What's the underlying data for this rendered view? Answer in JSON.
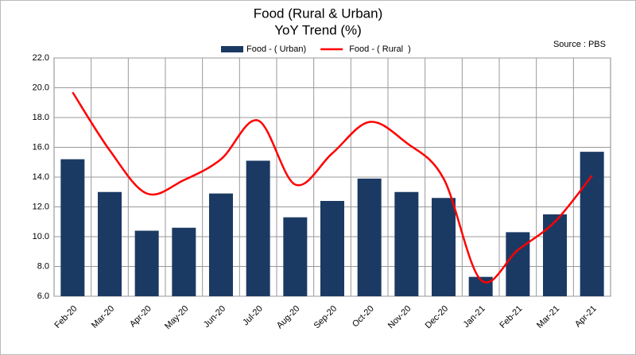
{
  "chart_data": {
    "type": "bar",
    "title": "Food  (Rural & Urban)",
    "subtitle": "YoY Trend (%)",
    "annotation": "Source : PBS",
    "categories": [
      "Feb-20",
      "Mar-20",
      "Apr-20",
      "May-20",
      "Jun-20",
      "Jul-20",
      "Aug-20",
      "Sep-20",
      "Oct-20",
      "Nov-20",
      "Dec-20",
      "Jan-21",
      "Feb-21",
      "Mar-21",
      "Apr-21"
    ],
    "series": [
      {
        "name": "Food - ( Urban)",
        "type": "bar",
        "color": "#1b3a63",
        "values": [
          15.2,
          13.0,
          10.4,
          10.6,
          12.9,
          15.1,
          11.3,
          12.4,
          13.9,
          13.0,
          12.6,
          7.3,
          10.3,
          11.5,
          15.7
        ]
      },
      {
        "name": "Food - ( Rural  )",
        "type": "line",
        "color": "#ff0000",
        "values": [
          19.7,
          15.8,
          12.9,
          13.8,
          15.2,
          17.8,
          13.5,
          15.6,
          17.7,
          16.3,
          13.9,
          7.1,
          9.1,
          11.0,
          14.1
        ]
      }
    ],
    "ylim": [
      6,
      22
    ],
    "yticks": [
      {
        "value": 6,
        "label": "6.0"
      },
      {
        "value": 8,
        "label": "8.0"
      },
      {
        "value": 10,
        "label": "10.0"
      },
      {
        "value": 12,
        "label": "12.0"
      },
      {
        "value": 14,
        "label": "14.0"
      },
      {
        "value": 16,
        "label": "16.0"
      },
      {
        "value": 18,
        "label": "18.0"
      },
      {
        "value": 20,
        "label": "20.0"
      },
      {
        "value": 22,
        "label": "22.0"
      }
    ],
    "grid": true,
    "legend": "top"
  }
}
